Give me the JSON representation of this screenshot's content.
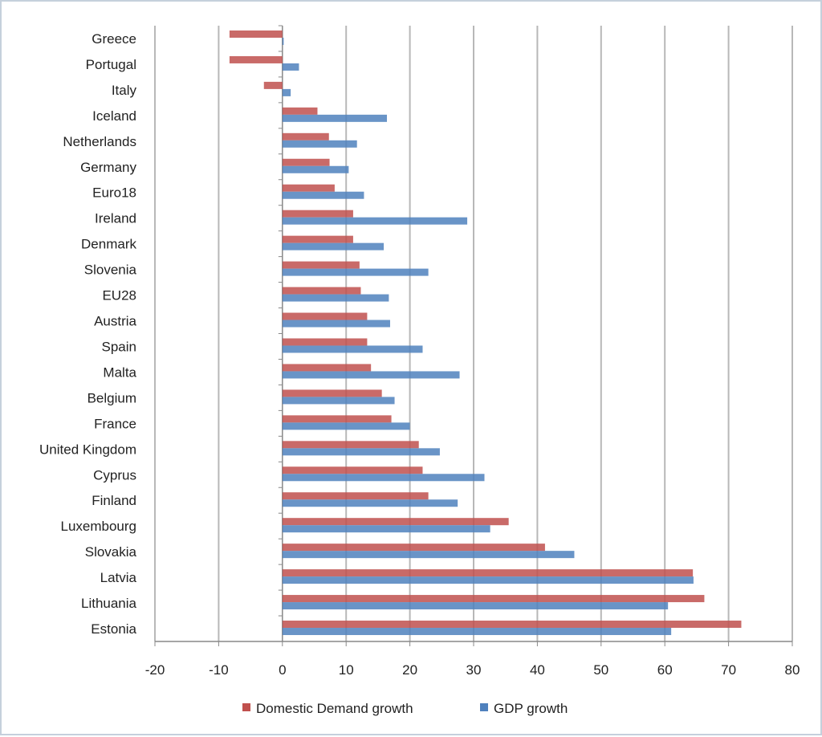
{
  "chart_data": {
    "type": "bar",
    "orientation": "horizontal",
    "categories": [
      "Greece",
      "Portugal",
      "Italy",
      "Iceland",
      "Netherlands",
      "Germany",
      "Euro18",
      "Ireland",
      "Denmark",
      "Slovenia",
      "EU28",
      "Austria",
      "Spain",
      "Malta",
      "Belgium",
      "France",
      "United Kingdom",
      "Cyprus",
      "Finland",
      "Luxembourg",
      "Slovakia",
      "Latvia",
      "Lithuania",
      "Estonia"
    ],
    "series": [
      {
        "name": "Domestic Demand growth",
        "color": "#c0504d",
        "values": [
          -8.3,
          -8.3,
          -2.9,
          5.5,
          7.3,
          7.4,
          8.2,
          11.1,
          11.1,
          12.1,
          12.3,
          13.3,
          13.3,
          13.9,
          15.6,
          17.1,
          21.4,
          22.0,
          22.9,
          35.5,
          41.2,
          64.4,
          66.2,
          72.0
        ]
      },
      {
        "name": "GDP growth",
        "color": "#4f81bd",
        "values": [
          0.2,
          2.6,
          1.3,
          16.4,
          11.7,
          10.4,
          12.8,
          29.0,
          15.9,
          22.9,
          16.7,
          16.9,
          22.0,
          27.8,
          17.6,
          20.0,
          24.7,
          31.7,
          27.5,
          32.6,
          45.8,
          64.5,
          60.5,
          61.0
        ]
      }
    ],
    "xlim": [
      -20,
      80
    ],
    "xticks": [
      "-20",
      "-10",
      "0",
      "10",
      "20",
      "30",
      "40",
      "50",
      "60",
      "70",
      "80"
    ],
    "grid": true,
    "legend": "bottom"
  }
}
